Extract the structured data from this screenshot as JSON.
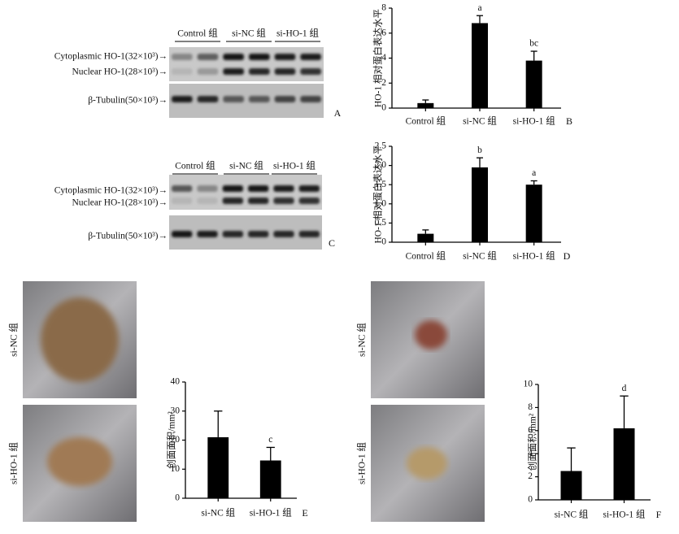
{
  "chart_data": [
    {
      "type": "bar",
      "panel": "B",
      "ylabel": "HO-1 相对蛋白表达水平",
      "categories": [
        "Control 组",
        "si-NC 组",
        "si-HO-1 组"
      ],
      "values": [
        0.4,
        6.8,
        3.8
      ],
      "error": [
        0.25,
        0.6,
        0.75
      ],
      "annotations": [
        null,
        "a",
        "bc"
      ],
      "color": "#000000",
      "ylim": [
        0,
        8
      ],
      "yticks": [
        0,
        2,
        4,
        6,
        8
      ]
    },
    {
      "type": "bar",
      "panel": "D",
      "ylabel": "HO-1 相对蛋白表达水平",
      "categories": [
        "Control 组",
        "si-NC 组",
        "si-HO-1 组"
      ],
      "values": [
        0.22,
        1.95,
        1.5
      ],
      "error": [
        0.1,
        0.25,
        0.1
      ],
      "annotations": [
        null,
        "b",
        "a"
      ],
      "color": "#000000",
      "ylim": [
        0,
        2.5
      ],
      "yticks": [
        0,
        0.5,
        {
          "value": 1,
          "label": "1.0"
        },
        1.5,
        {
          "value": 2,
          "label": "2.0"
        },
        2.5
      ]
    },
    {
      "type": "bar",
      "panel": "E",
      "ylabel": "创面面积/mm²",
      "categories": [
        "si-NC 组",
        "si-HO-1 组"
      ],
      "values": [
        21,
        13
      ],
      "error": [
        9,
        4.5
      ],
      "annotations": [
        null,
        "c"
      ],
      "color": "#000000",
      "ylim": [
        0,
        40
      ],
      "yticks": [
        0,
        10,
        20,
        30,
        40
      ]
    },
    {
      "type": "bar",
      "panel": "F",
      "ylabel": "创面面积/mm²",
      "categories": [
        "si-NC 组",
        "si-HO-1 组"
      ],
      "values": [
        2.5,
        6.2
      ],
      "error": [
        2,
        2.8
      ],
      "annotations": [
        null,
        "d"
      ],
      "color": "#000000",
      "ylim": [
        0,
        10
      ],
      "yticks": [
        0,
        2,
        4,
        6,
        8,
        10
      ]
    }
  ],
  "blot_panels": [
    {
      "panel": "A",
      "groups": [
        "Control 组",
        "si-NC 组",
        "si-HO-1 组"
      ],
      "bands": [
        "Cytoplasmic HO-1(32×10³)→",
        "Nuclear HO-1(28×10³)→",
        "β-Tubulin(50×10³)→"
      ]
    },
    {
      "panel": "C",
      "groups": [
        "Control 组",
        "si-NC 组",
        "si-HO-1 组"
      ],
      "bands": [
        "Cytoplasmic HO-1(32×10³)→",
        "Nuclear HO-1(28×10³)→",
        "β-Tubulin(50×10³)→"
      ]
    }
  ],
  "photo_panels": [
    {
      "rows": [
        "si-NC 组",
        "si-HO-1 组"
      ]
    },
    {
      "rows": [
        "si-NC 组",
        "si-HO-1 组"
      ]
    }
  ]
}
